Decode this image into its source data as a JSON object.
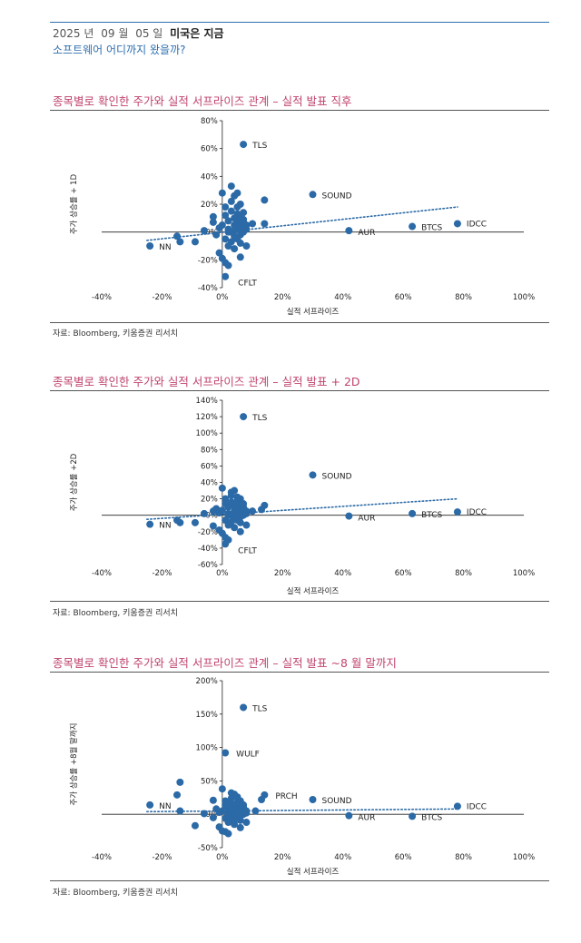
{
  "header": {
    "year": "2025 년",
    "month": "09 월",
    "day": "05 일",
    "report_name": "미국은 지금",
    "subtitle": "소프트웨어 어디까지 왔을까?"
  },
  "colors": {
    "dot": "#2b6aa6",
    "trend": "#2b6aa6",
    "title": "#c0436e"
  },
  "chart_data": [
    {
      "type": "scatter",
      "title": "종목별로 확인한 주가와 실적 서프라이즈 관계 – 실적 발표 직후",
      "xlabel": "실적 서프라이즈",
      "ylabel": "주가 상승률 + 1D",
      "source": "자료: Bloomberg, 키움증권 리서치",
      "xlim": [
        -0.4,
        1.0
      ],
      "ylim": [
        -0.4,
        0.8
      ],
      "x_ticks": [
        "-40%",
        "-20%",
        "0%",
        "20%",
        "40%",
        "60%",
        "80%",
        "100%"
      ],
      "y_ticks": [
        "80%",
        "60%",
        "40%",
        "20%",
        "0%",
        "-20%",
        "-40%"
      ],
      "trendline": {
        "x": [
          -0.25,
          0.78
        ],
        "y": [
          -0.06,
          0.18
        ]
      },
      "labeled_points": [
        {
          "label": "TLS",
          "x": 0.07,
          "y": 0.63
        },
        {
          "label": "SOUND",
          "x": 0.3,
          "y": 0.27
        },
        {
          "label": "IDCC",
          "x": 0.78,
          "y": 0.06
        },
        {
          "label": "BTCS",
          "x": 0.63,
          "y": 0.04
        },
        {
          "label": "AUR",
          "x": 0.42,
          "y": 0.01
        },
        {
          "label": "NN",
          "x": -0.24,
          "y": -0.1
        },
        {
          "label": "CFLT",
          "x": 0.01,
          "y": -0.32
        }
      ],
      "points": [
        [
          -0.15,
          -0.03
        ],
        [
          -0.14,
          -0.07
        ],
        [
          -0.09,
          -0.07
        ],
        [
          -0.06,
          0.01
        ],
        [
          -0.03,
          0.07
        ],
        [
          -0.03,
          0.11
        ],
        [
          -0.02,
          -0.02
        ],
        [
          -0.01,
          0.03
        ],
        [
          -0.01,
          -0.15
        ],
        [
          0.0,
          0.28
        ],
        [
          0.0,
          -0.19
        ],
        [
          0.0,
          0.05
        ],
        [
          0.01,
          0.12
        ],
        [
          0.01,
          -0.05
        ],
        [
          0.01,
          -0.22
        ],
        [
          0.01,
          0.18
        ],
        [
          0.02,
          0.08
        ],
        [
          0.02,
          0.02
        ],
        [
          0.02,
          -0.1
        ],
        [
          0.02,
          -0.24
        ],
        [
          0.03,
          0.33
        ],
        [
          0.03,
          0.15
        ],
        [
          0.03,
          0.0
        ],
        [
          0.03,
          -0.07
        ],
        [
          0.03,
          0.22
        ],
        [
          0.04,
          0.26
        ],
        [
          0.04,
          0.1
        ],
        [
          0.04,
          0.05
        ],
        [
          0.04,
          -0.03
        ],
        [
          0.04,
          -0.12
        ],
        [
          0.05,
          0.28
        ],
        [
          0.05,
          0.18
        ],
        [
          0.05,
          0.08
        ],
        [
          0.05,
          0.02
        ],
        [
          0.05,
          -0.05
        ],
        [
          0.05,
          0.13
        ],
        [
          0.06,
          0.2
        ],
        [
          0.06,
          0.1
        ],
        [
          0.06,
          0.04
        ],
        [
          0.06,
          -0.02
        ],
        [
          0.06,
          -0.08
        ],
        [
          0.06,
          -0.18
        ],
        [
          0.07,
          0.14
        ],
        [
          0.07,
          0.07
        ],
        [
          0.07,
          0.0
        ],
        [
          0.07,
          0.09
        ],
        [
          0.08,
          0.05
        ],
        [
          0.08,
          -0.1
        ],
        [
          0.08,
          0.02
        ],
        [
          0.1,
          0.06
        ],
        [
          0.14,
          0.06
        ],
        [
          0.14,
          0.23
        ],
        [
          0.02,
          0.0
        ],
        [
          0.04,
          0.01
        ]
      ]
    },
    {
      "type": "scatter",
      "title": "종목별로 확인한 주가와 실적 서프라이즈 관계 – 실적 발표 + 2D",
      "xlabel": "실적 서프라이즈",
      "ylabel": "주가 상승률 +2D",
      "source": "자료: Bloomberg, 키움증권 리서치",
      "xlim": [
        -0.4,
        1.0
      ],
      "ylim": [
        -0.6,
        1.4
      ],
      "x_ticks": [
        "-40%",
        "-20%",
        "0%",
        "20%",
        "40%",
        "60%",
        "80%",
        "100%"
      ],
      "y_ticks": [
        "140%",
        "120%",
        "100%",
        "80%",
        "60%",
        "40%",
        "20%",
        "0%",
        "-20%",
        "-40%",
        "-60%"
      ],
      "trendline": {
        "x": [
          -0.25,
          0.78
        ],
        "y": [
          -0.05,
          0.2
        ]
      },
      "labeled_points": [
        {
          "label": "TLS",
          "x": 0.07,
          "y": 1.2
        },
        {
          "label": "SOUND",
          "x": 0.3,
          "y": 0.49
        },
        {
          "label": "IDCC",
          "x": 0.78,
          "y": 0.04
        },
        {
          "label": "BTCS",
          "x": 0.63,
          "y": 0.02
        },
        {
          "label": "AUR",
          "x": 0.42,
          "y": -0.01
        },
        {
          "label": "NN",
          "x": -0.24,
          "y": -0.11
        },
        {
          "label": "CFLT",
          "x": 0.01,
          "y": -0.35
        }
      ],
      "points": [
        [
          -0.15,
          -0.06
        ],
        [
          -0.14,
          -0.09
        ],
        [
          -0.09,
          -0.09
        ],
        [
          -0.06,
          0.02
        ],
        [
          -0.03,
          0.05
        ],
        [
          -0.03,
          -0.13
        ],
        [
          -0.02,
          0.08
        ],
        [
          -0.01,
          0.03
        ],
        [
          -0.01,
          -0.18
        ],
        [
          0.0,
          0.33
        ],
        [
          0.0,
          -0.22
        ],
        [
          0.0,
          0.06
        ],
        [
          0.01,
          0.14
        ],
        [
          0.01,
          -0.06
        ],
        [
          0.01,
          -0.27
        ],
        [
          0.01,
          0.2
        ],
        [
          0.02,
          0.1
        ],
        [
          0.02,
          0.02
        ],
        [
          0.02,
          -0.12
        ],
        [
          0.02,
          -0.3
        ],
        [
          0.03,
          0.28
        ],
        [
          0.03,
          0.16
        ],
        [
          0.03,
          0.0
        ],
        [
          0.03,
          -0.08
        ],
        [
          0.03,
          0.24
        ],
        [
          0.04,
          0.3
        ],
        [
          0.04,
          0.11
        ],
        [
          0.04,
          0.05
        ],
        [
          0.04,
          -0.04
        ],
        [
          0.04,
          -0.15
        ],
        [
          0.05,
          0.22
        ],
        [
          0.05,
          0.18
        ],
        [
          0.05,
          0.08
        ],
        [
          0.05,
          0.02
        ],
        [
          0.05,
          -0.06
        ],
        [
          0.05,
          0.14
        ],
        [
          0.06,
          0.2
        ],
        [
          0.06,
          0.1
        ],
        [
          0.06,
          0.04
        ],
        [
          0.06,
          -0.02
        ],
        [
          0.06,
          -0.09
        ],
        [
          0.06,
          -0.2
        ],
        [
          0.07,
          0.14
        ],
        [
          0.07,
          0.07
        ],
        [
          0.07,
          0.0
        ],
        [
          0.07,
          0.1
        ],
        [
          0.08,
          0.05
        ],
        [
          0.08,
          -0.12
        ],
        [
          0.08,
          0.02
        ],
        [
          0.1,
          0.05
        ],
        [
          0.13,
          0.07
        ],
        [
          0.14,
          0.12
        ],
        [
          0.02,
          0.0
        ],
        [
          0.04,
          0.01
        ]
      ]
    },
    {
      "type": "scatter",
      "title": "종목별로 확인한 주가와 실적 서프라이즈 관계 – 실적 발표 ~8 월 말까지",
      "xlabel": "실적 서프라이즈",
      "ylabel": "주가 상승률 +8월 말까지",
      "source": "자료: Bloomberg, 키움증권 리서치",
      "xlim": [
        -0.4,
        1.0
      ],
      "ylim": [
        -0.5,
        2.0
      ],
      "x_ticks": [
        "-40%",
        "-20%",
        "0%",
        "20%",
        "40%",
        "60%",
        "80%",
        "100%"
      ],
      "y_ticks": [
        "200%",
        "150%",
        "100%",
        "50%",
        "0%",
        "-50%"
      ],
      "trendline": {
        "x": [
          -0.25,
          0.78
        ],
        "y": [
          0.04,
          0.08
        ]
      },
      "labeled_points": [
        {
          "label": "TLS",
          "x": 0.07,
          "y": 1.6
        },
        {
          "label": "WULF",
          "x": 0.01,
          "y": 0.92
        },
        {
          "label": "PRCH",
          "x": 0.14,
          "y": 0.29
        },
        {
          "label": "SOUND",
          "x": 0.3,
          "y": 0.22
        },
        {
          "label": "IDCC",
          "x": 0.78,
          "y": 0.12
        },
        {
          "label": "NN",
          "x": -0.24,
          "y": 0.14
        },
        {
          "label": "AUR",
          "x": 0.42,
          "y": -0.02
        },
        {
          "label": "BTCS",
          "x": 0.63,
          "y": -0.03
        }
      ],
      "points": [
        [
          -0.15,
          0.29
        ],
        [
          -0.14,
          0.48
        ],
        [
          -0.14,
          0.05
        ],
        [
          -0.09,
          -0.17
        ],
        [
          -0.06,
          0.01
        ],
        [
          -0.03,
          0.21
        ],
        [
          -0.03,
          -0.05
        ],
        [
          -0.02,
          0.08
        ],
        [
          -0.01,
          0.03
        ],
        [
          -0.01,
          -0.19
        ],
        [
          0.0,
          0.38
        ],
        [
          0.0,
          -0.25
        ],
        [
          0.0,
          0.05
        ],
        [
          0.01,
          0.14
        ],
        [
          0.01,
          -0.06
        ],
        [
          0.01,
          -0.26
        ],
        [
          0.01,
          0.2
        ],
        [
          0.02,
          0.1
        ],
        [
          0.02,
          0.02
        ],
        [
          0.02,
          -0.12
        ],
        [
          0.02,
          -0.29
        ],
        [
          0.03,
          0.32
        ],
        [
          0.03,
          0.16
        ],
        [
          0.03,
          0.0
        ],
        [
          0.03,
          -0.08
        ],
        [
          0.03,
          0.24
        ],
        [
          0.04,
          0.3
        ],
        [
          0.04,
          0.11
        ],
        [
          0.04,
          0.05
        ],
        [
          0.04,
          -0.04
        ],
        [
          0.04,
          -0.15
        ],
        [
          0.05,
          0.26
        ],
        [
          0.05,
          0.18
        ],
        [
          0.05,
          0.08
        ],
        [
          0.05,
          0.02
        ],
        [
          0.05,
          -0.06
        ],
        [
          0.05,
          0.14
        ],
        [
          0.06,
          0.2
        ],
        [
          0.06,
          0.1
        ],
        [
          0.06,
          0.04
        ],
        [
          0.06,
          -0.02
        ],
        [
          0.06,
          -0.09
        ],
        [
          0.06,
          -0.2
        ],
        [
          0.07,
          0.14
        ],
        [
          0.07,
          0.07
        ],
        [
          0.07,
          0.0
        ],
        [
          0.07,
          0.1
        ],
        [
          0.08,
          0.05
        ],
        [
          0.08,
          -0.12
        ],
        [
          0.08,
          0.02
        ],
        [
          0.11,
          0.05
        ],
        [
          0.13,
          0.22
        ],
        [
          0.02,
          0.0
        ],
        [
          0.04,
          0.01
        ]
      ]
    }
  ]
}
